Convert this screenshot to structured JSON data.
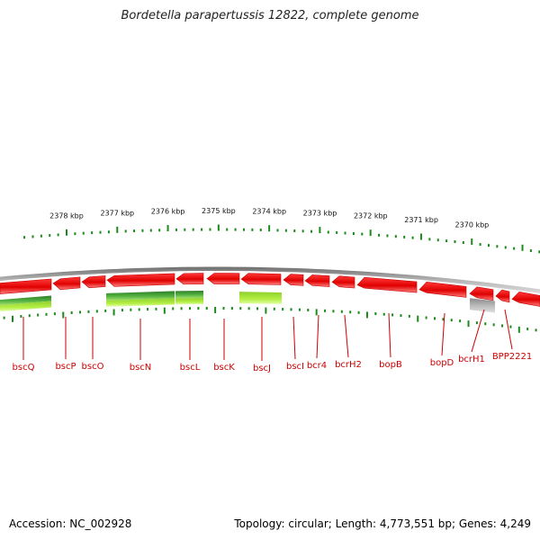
{
  "title": "Bordetella parapertussis 12822, complete genome",
  "accession_text": "Accession: NC_002928",
  "topology_text": "Topology: circular; Length: 4,773,551 bp; Genes: 4,249",
  "colors": {
    "gene": "#e00000",
    "gene_label": "#cc0000",
    "backbone": "#8c8c8c",
    "tick": "#1a8a1a",
    "track_dark_green": "#3c9a32",
    "track_light_green": "#a3e33c",
    "track_grey": "#a8a8a8"
  },
  "scale_labels": [
    {
      "text": "2378 kbp",
      "kbp": 2378
    },
    {
      "text": "2377 kbp",
      "kbp": 2377
    },
    {
      "text": "2376 kbp",
      "kbp": 2376
    },
    {
      "text": "2375 kbp",
      "kbp": 2375
    },
    {
      "text": "2374 kbp",
      "kbp": 2374
    },
    {
      "text": "2373 kbp",
      "kbp": 2373
    },
    {
      "text": "2372 kbp",
      "kbp": 2372
    },
    {
      "text": "2371 kbp",
      "kbp": 2371
    },
    {
      "text": "2370 kbp",
      "kbp": 2370
    }
  ],
  "genes": [
    {
      "name": "bscQ"
    },
    {
      "name": "bscP"
    },
    {
      "name": "bscO"
    },
    {
      "name": "bscN"
    },
    {
      "name": "bscL"
    },
    {
      "name": "bscK"
    },
    {
      "name": "bscJ"
    },
    {
      "name": "bscI"
    },
    {
      "name": "bcr4"
    },
    {
      "name": "bcrH2"
    },
    {
      "name": "bopB"
    },
    {
      "name": "bopD"
    },
    {
      "name": "bcrH1"
    },
    {
      "name": "BPP2221"
    }
  ]
}
